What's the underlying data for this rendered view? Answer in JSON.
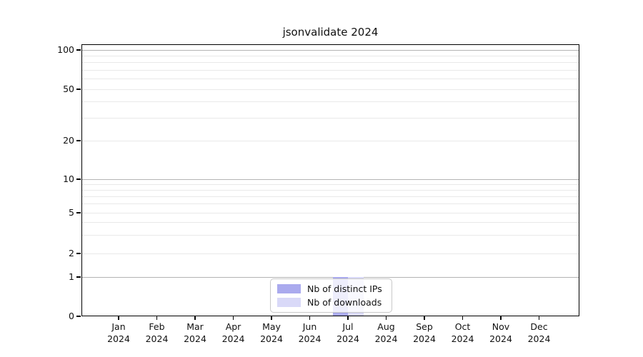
{
  "chart_data": {
    "type": "bar",
    "title": "jsonvalidate 2024",
    "categories": [
      "Jan",
      "Feb",
      "Mar",
      "Apr",
      "May",
      "Jun",
      "Jul",
      "Aug",
      "Sep",
      "Oct",
      "Nov",
      "Dec"
    ],
    "x_tick_year": "2024",
    "series": [
      {
        "name": "Nb of distinct IPs",
        "color": "#aaaaee",
        "values": [
          0,
          0,
          0,
          0,
          0,
          0,
          1,
          0,
          0,
          0,
          0,
          0
        ]
      },
      {
        "name": "Nb of downloads",
        "color": "#d9d9f8",
        "values": [
          0,
          0,
          0,
          0,
          0,
          0,
          1,
          0,
          0,
          0,
          0,
          0
        ]
      }
    ],
    "yticks": [
      100,
      50,
      20,
      10,
      5,
      2,
      1,
      0
    ],
    "ylim": [
      0,
      110
    ],
    "yscale": "log above 1, linear 0-1 (symlog-like)",
    "xlabel": "",
    "ylabel": "",
    "grid": "horizontal only, light log minor gridlines, darker lines at 1/10/100",
    "legend_position": "bottom-center",
    "colors": {
      "major_gridline": "#b4b4b4",
      "minor_gridline": "#e9e9e9",
      "spine": "#000000",
      "text": "#111111",
      "legend_border": "#c8c8c8"
    }
  }
}
